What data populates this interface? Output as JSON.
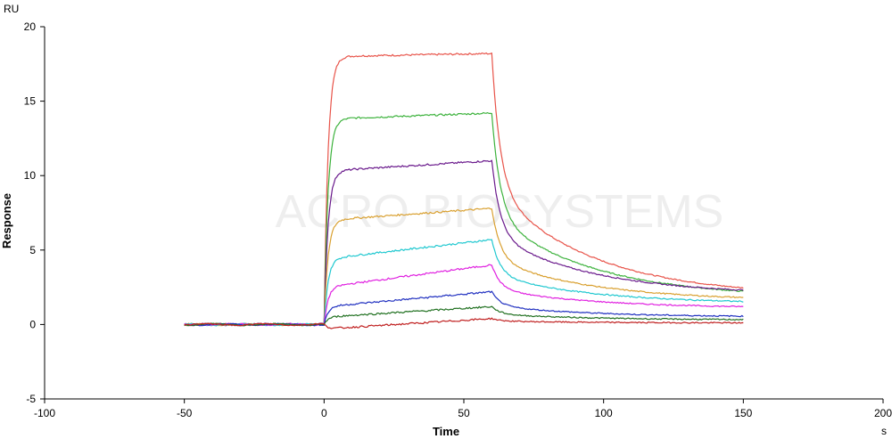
{
  "chart_data": {
    "type": "line",
    "ylabel": "Response",
    "xlabel": "Time",
    "y_unit": "RU",
    "x_unit": "s",
    "xlim": [
      -100,
      200
    ],
    "ylim": [
      -5,
      20
    ],
    "x_ticks": [
      -100,
      -50,
      0,
      50,
      100,
      150,
      200
    ],
    "y_ticks": [
      -5,
      0,
      5,
      10,
      15,
      20
    ],
    "watermark": "ACRO BIOSYSTEMS",
    "grid": false,
    "phases": {
      "baseline_start": -50,
      "association_start": 0,
      "dissociation_start": 60,
      "end": 150
    },
    "series": [
      {
        "color": "#e8544a",
        "plateau": 18.0,
        "end_assoc": 18.2,
        "end": 1.9
      },
      {
        "color": "#3cb23c",
        "plateau": 13.8,
        "end_assoc": 14.2,
        "end": 1.8
      },
      {
        "color": "#6a1a8c",
        "plateau": 10.3,
        "end_assoc": 11.0,
        "end": 2.0
      },
      {
        "color": "#d9a030",
        "plateau": 7.0,
        "end_assoc": 7.8,
        "end": 1.6
      },
      {
        "color": "#20c8d0",
        "plateau": 4.4,
        "end_assoc": 5.7,
        "end": 1.4
      },
      {
        "color": "#e020e0",
        "plateau": 2.5,
        "end_assoc": 4.0,
        "end": 1.1
      },
      {
        "color": "#2030c0",
        "plateau": 1.2,
        "end_assoc": 2.2,
        "end": 0.5
      },
      {
        "color": "#207020",
        "plateau": 0.5,
        "end_assoc": 1.2,
        "end": 0.3
      },
      {
        "color": "#c02020",
        "plateau": -0.3,
        "end_assoc": 0.4,
        "end": 0.1
      }
    ]
  }
}
